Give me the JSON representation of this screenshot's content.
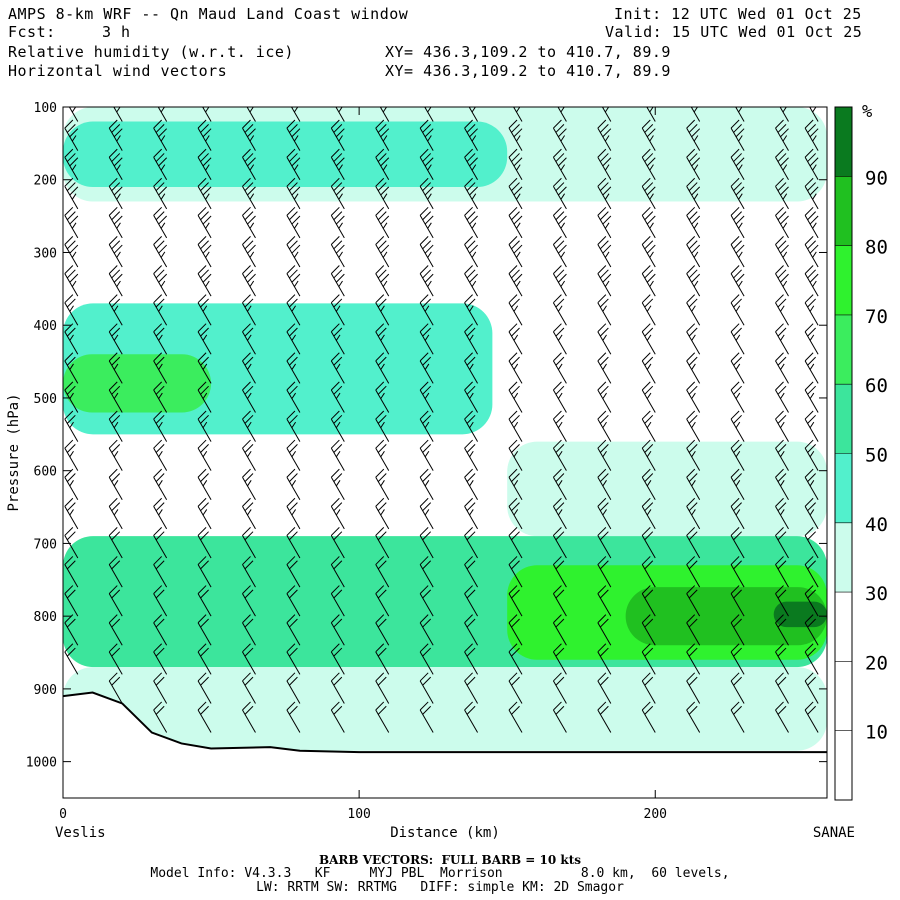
{
  "header": {
    "title": "AMPS 8-km WRF -- Qn Maud Land Coast window",
    "fcst_label": "Fcst:",
    "fcst_value": "3 h",
    "init": "Init: 12 UTC Wed 01 Oct 25",
    "valid": "Valid: 15 UTC Wed 01 Oct 25",
    "field1": "Relative humidity (w.r.t. ice)",
    "field2": "Horizontal wind vectors",
    "xy1": "XY= 436.3,109.2 to 410.7, 89.9",
    "xy2": "XY= 436.3,109.2 to 410.7, 89.9"
  },
  "footer": {
    "barb_note": "BARB VECTORS:  FULL BARB = 10 kts",
    "model_line1": "Model Info: V4.3.3   KF     MYJ PBL  Morrison          8.0 km,  60 levels,",
    "model_line2": "LW: RRTM SW: RRTMG   DIFF: simple KM: 2D Smagor"
  },
  "chart_data": {
    "type": "heatmap",
    "xlabel": "Distance (km)",
    "ylabel": "Pressure (hPa)",
    "xlim": [
      0,
      258
    ],
    "ylim": [
      1050,
      100
    ],
    "x_ticks": [
      0,
      100,
      200
    ],
    "y_ticks": [
      100,
      200,
      300,
      400,
      500,
      600,
      700,
      800,
      900,
      1000
    ],
    "x_endpoint_labels": [
      "Veslis",
      "SANAE"
    ],
    "colorbar": {
      "unit": "%",
      "levels": [
        0,
        10,
        20,
        30,
        40,
        50,
        60,
        70,
        80,
        90,
        100
      ],
      "tick_labels": [
        "10",
        "20",
        "30",
        "40",
        "50",
        "60",
        "70",
        "80",
        "90"
      ],
      "colors": [
        "#ffffff",
        "#ffffff",
        "#ffffff",
        "#ccfcec",
        "#52f0cc",
        "#3ce59c",
        "#3bed5e",
        "#2ff22e",
        "#20c020",
        "#0a7a1f"
      ]
    },
    "rh_bands": [
      {
        "p_top": 100,
        "p_bottom": 230,
        "x_from": 0,
        "x_to": 258,
        "rh": 35
      },
      {
        "p_top": 120,
        "p_bottom": 210,
        "x_from": 0,
        "x_to": 150,
        "rh": 45
      },
      {
        "p_top": 230,
        "p_bottom": 350,
        "x_from": 0,
        "x_to": 258,
        "rh": 25
      },
      {
        "p_top": 370,
        "p_bottom": 550,
        "x_from": 0,
        "x_to": 145,
        "rh": 45
      },
      {
        "p_top": 440,
        "p_bottom": 520,
        "x_from": 0,
        "x_to": 50,
        "rh": 60
      },
      {
        "p_top": 560,
        "p_bottom": 690,
        "x_from": 150,
        "x_to": 258,
        "rh": 35
      },
      {
        "p_top": 690,
        "p_bottom": 870,
        "x_from": 0,
        "x_to": 258,
        "rh": 55
      },
      {
        "p_top": 730,
        "p_bottom": 860,
        "x_from": 150,
        "x_to": 258,
        "rh": 75
      },
      {
        "p_top": 760,
        "p_bottom": 840,
        "x_from": 190,
        "x_to": 258,
        "rh": 85
      },
      {
        "p_top": 780,
        "p_bottom": 815,
        "x_from": 240,
        "x_to": 258,
        "rh": 95
      },
      {
        "p_top": 870,
        "p_bottom": 985,
        "x_from": 0,
        "x_to": 258,
        "rh": 35
      }
    ],
    "terrain_surface": [
      {
        "x": 0,
        "p": 910
      },
      {
        "x": 10,
        "p": 905
      },
      {
        "x": 20,
        "p": 920
      },
      {
        "x": 30,
        "p": 960
      },
      {
        "x": 40,
        "p": 975
      },
      {
        "x": 50,
        "p": 982
      },
      {
        "x": 70,
        "p": 980
      },
      {
        "x": 80,
        "p": 985
      },
      {
        "x": 100,
        "p": 987
      },
      {
        "x": 258,
        "p": 987
      }
    ],
    "wind_barbs": {
      "x_positions": [
        5,
        20,
        35,
        50,
        65,
        80,
        95,
        110,
        125,
        140,
        155,
        170,
        185,
        200,
        215,
        230,
        245,
        255
      ],
      "pressure_levels": [
        120,
        160,
        200,
        240,
        280,
        320,
        360,
        400,
        440,
        480,
        520,
        560,
        600,
        640,
        680,
        720,
        760,
        800,
        840,
        880,
        920,
        960,
        1000
      ],
      "direction_from_deg": 330,
      "speed_upper_kts": 35,
      "speed_mid_kts": 25,
      "speed_lower_kts": 20
    }
  }
}
